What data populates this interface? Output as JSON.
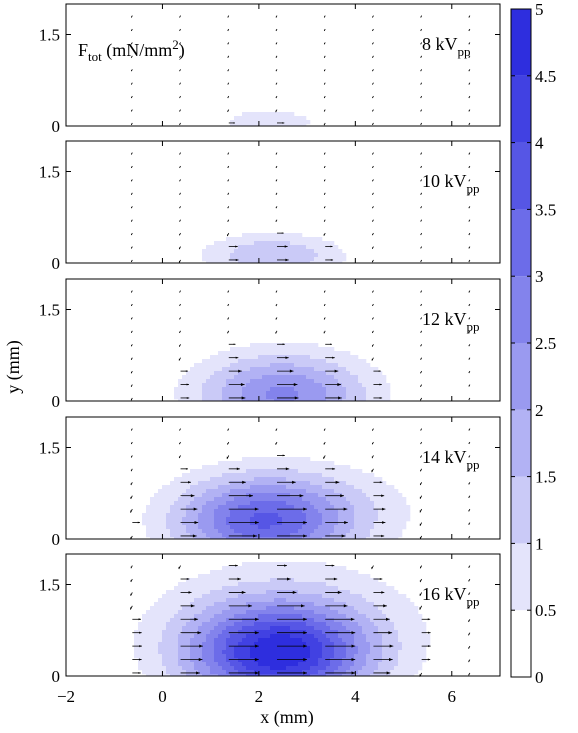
{
  "chart_data": {
    "type": "heatmap",
    "title_annotation": {
      "symbol": "F",
      "subscript": "tot",
      "units_prefix": "(mN/mm",
      "units_power": "2",
      "units_suffix": ")"
    },
    "xlabel": "x (mm)",
    "ylabel": "y (mm)",
    "xlim": [
      -2,
      7
    ],
    "ylim": [
      0,
      2
    ],
    "xticks": [
      "−2",
      "0",
      "2",
      "4",
      "6"
    ],
    "yticks": [
      "0",
      "1.5"
    ],
    "colorbar": {
      "min": 0,
      "max": 5,
      "levels": [
        0,
        0.5,
        1,
        1.5,
        2,
        2.5,
        3,
        3.5,
        4,
        4.5,
        5
      ],
      "tick_labels": [
        "0",
        "0.5",
        "1",
        "1.5",
        "2",
        "2.5",
        "3",
        "3.5",
        "4",
        "4.5",
        "5"
      ],
      "colors": [
        "#ffffff",
        "#e4e4fb",
        "#cacaf7",
        "#b2b2f4",
        "#9a9af0",
        "#8383ec",
        "#6c6ce9",
        "#5656e5",
        "#4141e2",
        "#2e2ede"
      ]
    },
    "panels": [
      {
        "voltage": "8",
        "unit": "kV",
        "subscript": "pp",
        "blobs": [
          {
            "cx": 2.2,
            "cy": 0.05,
            "rx": 1.25,
            "ry": 0.3,
            "peak": 1.0
          }
        ],
        "force_scale": 0.8
      },
      {
        "voltage": "10",
        "unit": "kV",
        "subscript": "pp",
        "blobs": [
          {
            "cx": 2.3,
            "cy": 0.12,
            "rx": 1.8,
            "ry": 0.45,
            "peak": 1.5
          }
        ],
        "force_scale": 1.2
      },
      {
        "voltage": "12",
        "unit": "kV",
        "subscript": "pp",
        "blobs": [
          {
            "cx": 2.5,
            "cy": 0.1,
            "rx": 2.2,
            "ry": 0.85,
            "peak": 2.6
          }
        ],
        "force_scale": 1.5
      },
      {
        "voltage": "14",
        "unit": "kV",
        "subscript": "pp",
        "blobs": [
          {
            "cx": 2.0,
            "cy": 0.3,
            "rx": 2.2,
            "ry": 0.9,
            "peak": 3.2
          },
          {
            "cx": 3.5,
            "cy": 0.45,
            "rx": 2.6,
            "ry": 1.0,
            "peak": 0.7
          }
        ],
        "force_scale": 1.9
      },
      {
        "voltage": "16",
        "unit": "kV",
        "subscript": "pp",
        "blobs": [
          {
            "cx": 2.4,
            "cy": 0.35,
            "rx": 2.3,
            "ry": 1.0,
            "peak": 4.3
          },
          {
            "cx": 2.6,
            "cy": 0.9,
            "rx": 3.6,
            "ry": 1.4,
            "peak": 0.9
          }
        ],
        "force_scale": 2.2
      }
    ]
  }
}
